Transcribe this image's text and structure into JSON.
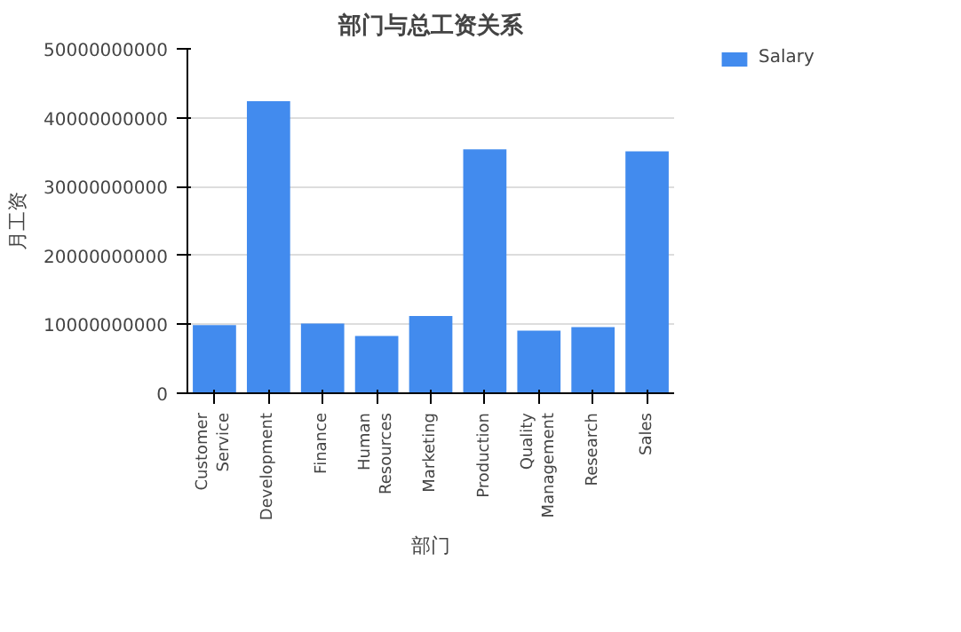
{
  "chart_data": {
    "type": "bar",
    "title": "部门与总工资关系",
    "xlabel": "部门",
    "ylabel": "月工资",
    "categories": [
      "Customer Service",
      "Development",
      "Finance",
      "Human Resources",
      "Marketing",
      "Production",
      "Quality Management",
      "Research",
      "Sales"
    ],
    "series": [
      {
        "name": "Salary",
        "color": "#428bee",
        "values": [
          9900000000,
          42400000000,
          10100000000,
          8300000000,
          11200000000,
          35400000000,
          9100000000,
          9600000000,
          35100000000
        ]
      }
    ],
    "ylim": [
      0,
      50000000000
    ],
    "yticks": [
      0,
      10000000000,
      20000000000,
      30000000000,
      40000000000,
      50000000000
    ],
    "grid": "y",
    "legend": "top right"
  }
}
